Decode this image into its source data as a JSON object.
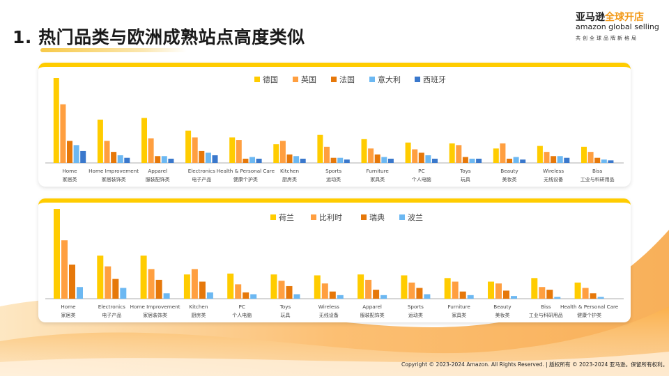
{
  "header": {
    "title": "1. 热门品类与欧洲成熟站点高度类似",
    "logo": {
      "cn_brand": "亚马逊",
      "cn_program": "全球开店",
      "en": "amazon global selling",
      "slogan": "共创全球品牌新格局"
    }
  },
  "footer": {
    "copyright": "Copyright © 2023-2024 Amazon. All Rights Reserved. | 版权所有 © 2023-2024 亚马逊。保留所有权利。"
  },
  "colors": {
    "accent": "#ffcc00",
    "brand_orange": "#f29a1a"
  },
  "chart_data": [
    {
      "type": "bar",
      "title": "",
      "note": "relative bar heights, no value axis shown",
      "legend_position": "top-center",
      "grid": false,
      "categories": [
        {
          "en": "Home",
          "cn": "家居类"
        },
        {
          "en": "Home Improvement",
          "cn": "家居装饰类"
        },
        {
          "en": "Apparel",
          "cn": "服装配饰类"
        },
        {
          "en": "Electronics",
          "cn": "电子产品"
        },
        {
          "en": "Health & Personal Care",
          "cn": "健康个护类"
        },
        {
          "en": "Kitchen",
          "cn": "厨房类"
        },
        {
          "en": "Sports",
          "cn": "运动类"
        },
        {
          "en": "Furniture",
          "cn": "家具类"
        },
        {
          "en": "PC",
          "cn": "个人电脑"
        },
        {
          "en": "Toys",
          "cn": "玩具"
        },
        {
          "en": "Beauty",
          "cn": "美妆类"
        },
        {
          "en": "Wireless",
          "cn": "无线设备"
        },
        {
          "en": "Biss",
          "cn": "工业与科研用品"
        }
      ],
      "series": [
        {
          "name": "德国",
          "color": "#ffcc00",
          "values": [
            100,
            51,
            53,
            38,
            30,
            22,
            33,
            28,
            24,
            23,
            17,
            20,
            19
          ]
        },
        {
          "name": "英国",
          "color": "#ff9f40",
          "values": [
            69,
            26,
            29,
            30,
            27,
            26,
            19,
            17,
            16,
            21,
            23,
            13,
            13
          ]
        },
        {
          "name": "法国",
          "color": "#e6780a",
          "values": [
            26,
            13,
            8,
            14,
            5,
            10,
            6,
            10,
            12,
            7,
            5,
            8,
            6
          ]
        },
        {
          "name": "意大利",
          "color": "#6cb8f2",
          "values": [
            21,
            9,
            8,
            12,
            7,
            8,
            6,
            7,
            9,
            5,
            7,
            8,
            4
          ]
        },
        {
          "name": "西班牙",
          "color": "#3a78cc",
          "values": [
            14,
            6,
            5,
            9,
            5,
            5,
            4,
            5,
            5,
            5,
            4,
            6,
            3
          ]
        }
      ]
    },
    {
      "type": "bar",
      "title": "",
      "note": "relative bar heights, no value axis shown",
      "legend_position": "top-center",
      "grid": false,
      "categories": [
        {
          "en": "Home",
          "cn": "家居类"
        },
        {
          "en": "Electronics",
          "cn": "电子产品"
        },
        {
          "en": "Home Improvement",
          "cn": "家居装饰类"
        },
        {
          "en": "Kitchen",
          "cn": "厨房类"
        },
        {
          "en": "PC",
          "cn": "个人电脑"
        },
        {
          "en": "Toys",
          "cn": "玩具"
        },
        {
          "en": "Wireless",
          "cn": "无线设备"
        },
        {
          "en": "Apparel",
          "cn": "服装配饰类"
        },
        {
          "en": "Sports",
          "cn": "运动类"
        },
        {
          "en": "Furniture",
          "cn": "家具类"
        },
        {
          "en": "Beauty",
          "cn": "美妆类"
        },
        {
          "en": "Biss",
          "cn": "工业与科研用品"
        },
        {
          "en": "Health & Personal Care",
          "cn": "健康个护类"
        }
      ],
      "series": [
        {
          "name": "荷兰",
          "color": "#ffcc00",
          "values": [
            100,
            48,
            48,
            27,
            28,
            27,
            26,
            27,
            26,
            23,
            19,
            23,
            18
          ]
        },
        {
          "name": "比利时",
          "color": "#ff9f40",
          "values": [
            65,
            36,
            33,
            33,
            16,
            20,
            17,
            21,
            18,
            19,
            17,
            13,
            12
          ]
        },
        {
          "name": "瑞典",
          "color": "#e6780a",
          "values": [
            38,
            22,
            21,
            19,
            7,
            14,
            8,
            10,
            12,
            8,
            9,
            10,
            6
          ]
        },
        {
          "name": "波兰",
          "color": "#6cb8f2",
          "values": [
            13,
            12,
            6,
            7,
            5,
            5,
            4,
            4,
            5,
            4,
            3,
            2,
            2
          ]
        }
      ]
    }
  ]
}
